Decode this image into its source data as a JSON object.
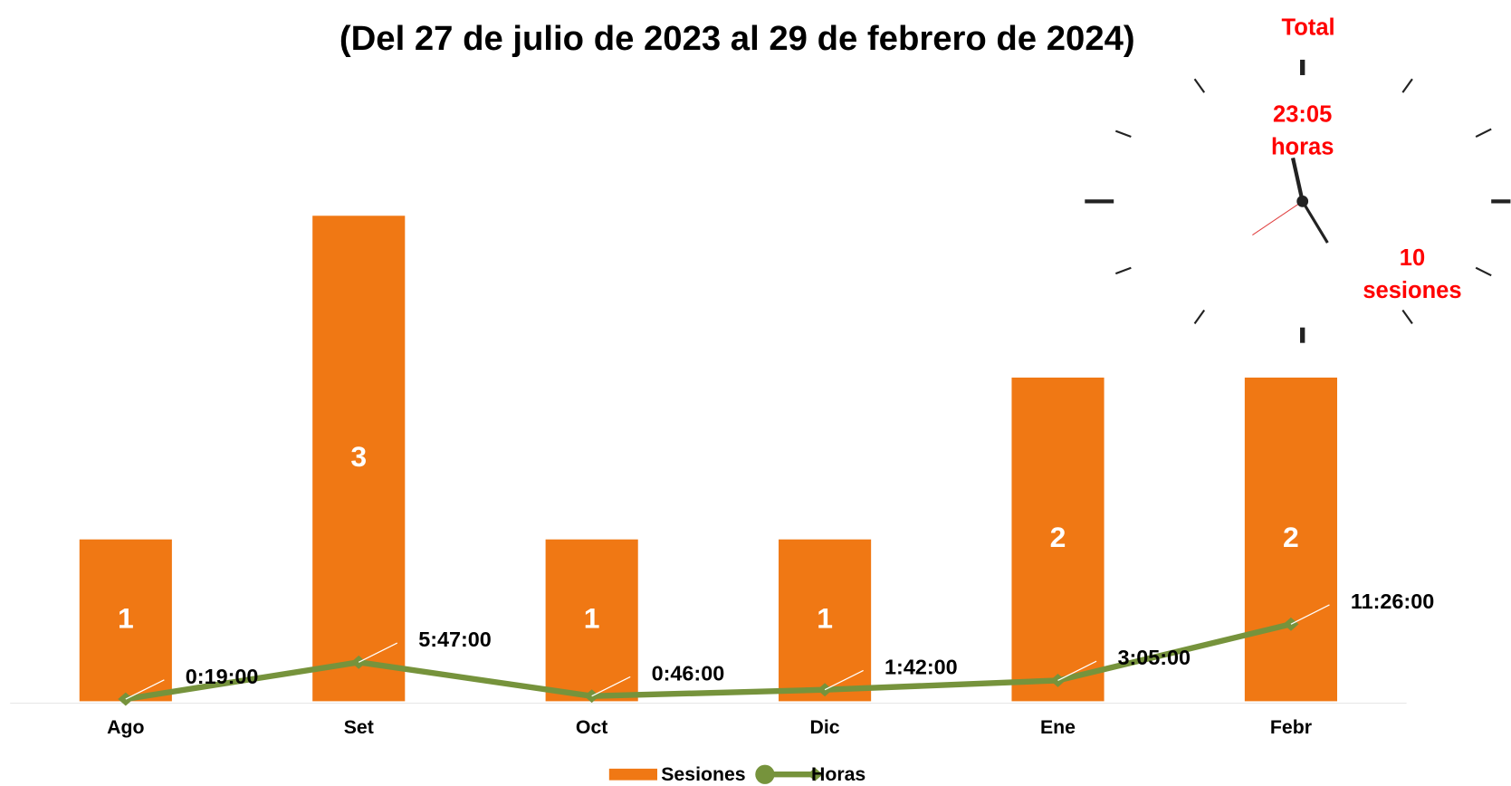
{
  "chart_data": {
    "type": "bar",
    "title": "(Del 27 de julio de 2023 al 29 de febrero de 2024)",
    "categories": [
      "Ago",
      "Set",
      "Oct",
      "Dic",
      "Ene",
      "Febr"
    ],
    "series": [
      {
        "name": "Sesiones",
        "type": "bar",
        "color": "#f07814",
        "values": [
          1,
          3,
          1,
          1,
          2,
          2
        ]
      },
      {
        "name": "Horas",
        "type": "line",
        "axis": "y2",
        "color": "#76933c",
        "values": [
          0.3167,
          5.7833,
          0.7667,
          1.7,
          3.0833,
          11.4333
        ],
        "value_labels": [
          "0:19:00",
          "5:47:00",
          "0:46:00",
          "1:42:00",
          "3:05:00",
          "11:26:00"
        ]
      }
    ],
    "ylim": [
      0,
      4
    ],
    "y2lim": [
      0,
      96
    ],
    "annotations": [
      "Total",
      "23:05",
      "horas",
      "10",
      "sesiones"
    ]
  }
}
